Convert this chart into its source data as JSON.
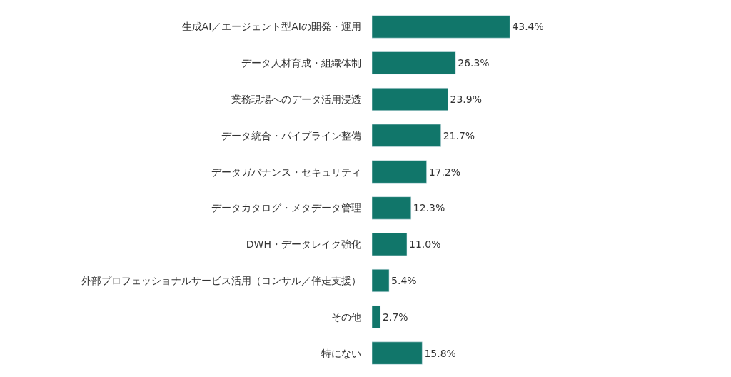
{
  "chart_data": {
    "type": "bar",
    "orientation": "horizontal",
    "categories": [
      "生成AI／エージェント型AIの開発・運用",
      "データ人材育成・組織体制",
      "業務現場へのデータ活用浸透",
      "データ統合・パイプライン整備",
      "データガバナンス・セキュリティ",
      "データカタログ・メタデータ管理",
      "DWH・データレイク強化",
      "外部プロフェッショナルサービス活用（コンサル／伴走支援）",
      "その他",
      "特にない"
    ],
    "values": [
      43.4,
      26.3,
      23.9,
      21.7,
      17.2,
      12.3,
      11.0,
      5.4,
      2.7,
      15.8
    ],
    "value_labels": [
      "43.4%",
      "26.3%",
      "23.9%",
      "21.7%",
      "17.2%",
      "12.3%",
      "11.0%",
      "5.4%",
      "2.7%",
      "15.8%"
    ],
    "color": "#11766a"
  }
}
